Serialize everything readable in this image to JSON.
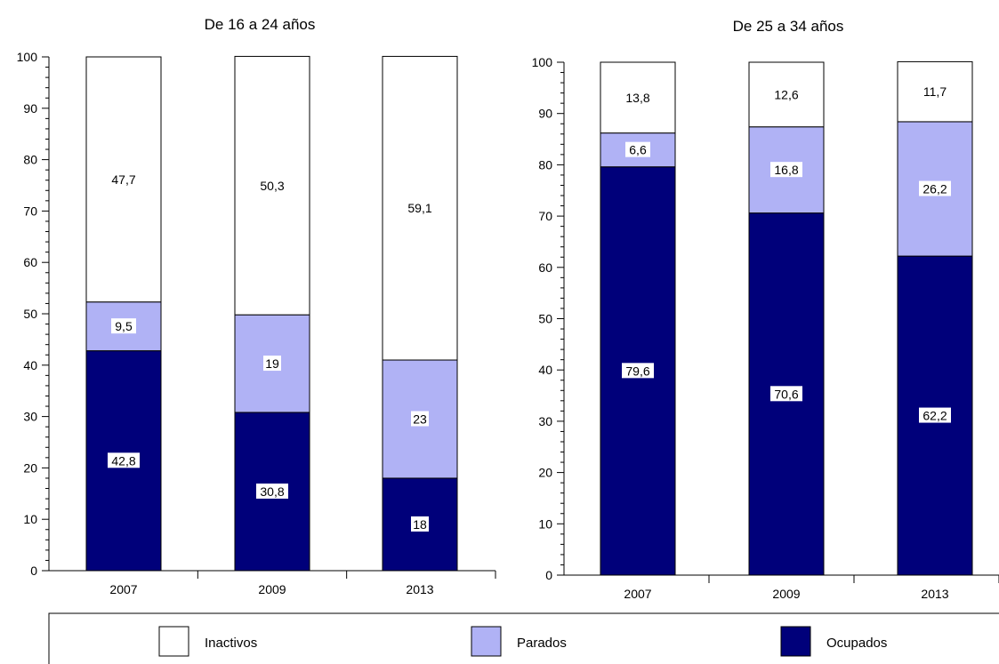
{
  "colors": {
    "Inactivos": "#ffffff",
    "Parados": "#b0b2f5",
    "Ocupados": "#00007a",
    "axis": "#000000",
    "label_bg": "#ffffff"
  },
  "legend": {
    "placement": "bottom",
    "items": [
      {
        "label": "Inactivos"
      },
      {
        "label": "Parados"
      },
      {
        "label": "Ocupados"
      }
    ]
  },
  "chart_data": [
    {
      "type": "bar",
      "stacked": true,
      "title": "De 16 a 24 años",
      "categories": [
        "2007",
        "2009",
        "2013"
      ],
      "series": [
        {
          "name": "Ocupados",
          "values": [
            42.8,
            30.8,
            18
          ],
          "labels": [
            "42,8",
            "30,8",
            "18"
          ]
        },
        {
          "name": "Parados",
          "values": [
            9.5,
            19,
            23
          ],
          "labels": [
            "9,5",
            "19",
            "23"
          ]
        },
        {
          "name": "Inactivos",
          "values": [
            47.7,
            50.3,
            59.1
          ],
          "labels": [
            "47,7",
            "50,3",
            "59,1"
          ]
        }
      ],
      "ylim": [
        0,
        100
      ],
      "yticks": [
        0,
        10,
        20,
        30,
        40,
        50,
        60,
        70,
        80,
        90,
        100
      ],
      "grid": false
    },
    {
      "type": "bar",
      "stacked": true,
      "title": "De 25 a 34 años",
      "categories": [
        "2007",
        "2009",
        "2013"
      ],
      "series": [
        {
          "name": "Ocupados",
          "values": [
            79.6,
            70.6,
            62.2
          ],
          "labels": [
            "79,6",
            "70,6",
            "62,2"
          ]
        },
        {
          "name": "Parados",
          "values": [
            6.6,
            16.8,
            26.2
          ],
          "labels": [
            "6,6",
            "16,8",
            "26,2"
          ]
        },
        {
          "name": "Inactivos",
          "values": [
            13.8,
            12.6,
            11.7
          ],
          "labels": [
            "13,8",
            "12,6",
            "11,7"
          ]
        }
      ],
      "ylim": [
        0,
        100
      ],
      "yticks": [
        0,
        10,
        20,
        30,
        40,
        50,
        60,
        70,
        80,
        90,
        100
      ],
      "grid": false
    }
  ]
}
